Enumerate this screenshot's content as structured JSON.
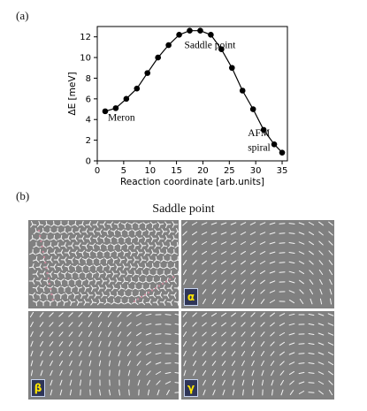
{
  "labels": {
    "panel_a": "(a)",
    "panel_b": "(b)",
    "saddle_title": "Saddle point"
  },
  "chart_data": {
    "type": "line",
    "xlabel": "Reaction coordinate [arb.units]",
    "ylabel": "ΔE [meV]",
    "xlim": [
      0,
      36
    ],
    "ylim": [
      0,
      13
    ],
    "xticks": [
      0,
      5,
      10,
      15,
      20,
      25,
      30,
      35
    ],
    "yticks": [
      0,
      2,
      4,
      6,
      8,
      10,
      12
    ],
    "grid": false,
    "series": [
      {
        "x": [
          1.5,
          3.5,
          5.5,
          7.5,
          9.5,
          11.5,
          13.5,
          15.5,
          17.5,
          19.5,
          21.5,
          23.5,
          25.5,
          27.5,
          29.5,
          31.5,
          33.5,
          35
        ],
        "values": [
          4.8,
          5.1,
          6.0,
          7.0,
          8.5,
          10.0,
          11.2,
          12.2,
          12.6,
          12.6,
          12.2,
          10.8,
          9.0,
          6.8,
          5.0,
          3.0,
          1.6,
          0.8
        ]
      }
    ],
    "annotations": [
      {
        "text": "Saddle point",
        "x": 16.5,
        "y": 10.9
      },
      {
        "text": "Meron",
        "x": 2.0,
        "y": 3.9
      },
      {
        "text": "AFM",
        "x": 28.5,
        "y": 2.4
      },
      {
        "text": "spiral",
        "x": 28.5,
        "y": 1.0
      }
    ]
  },
  "maps": [
    {
      "id": "saddle",
      "badge": ""
    },
    {
      "id": "alpha",
      "badge": "α"
    },
    {
      "id": "beta",
      "badge": "β"
    },
    {
      "id": "gamma",
      "badge": "γ"
    }
  ]
}
